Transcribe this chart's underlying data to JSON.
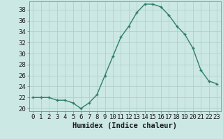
{
  "x": [
    0,
    1,
    2,
    3,
    4,
    5,
    6,
    7,
    8,
    9,
    10,
    11,
    12,
    13,
    14,
    15,
    16,
    17,
    18,
    19,
    20,
    21,
    22,
    23
  ],
  "y": [
    22,
    22,
    22,
    21.5,
    21.5,
    21,
    20,
    21,
    22.5,
    26,
    29.5,
    33,
    35,
    37.5,
    39,
    39,
    38.5,
    37,
    35,
    33.5,
    31,
    27,
    25,
    24.5
  ],
  "line_color": "#2e7d6e",
  "marker": "+",
  "marker_size": 3,
  "marker_lw": 1.0,
  "line_width": 1.0,
  "background_color": "#cce8e4",
  "grid_color": "#b0d0cc",
  "xlabel": "Humidex (Indice chaleur)",
  "xlabel_fontsize": 7.5,
  "tick_fontsize": 6.5,
  "ylim": [
    19.5,
    39.5
  ],
  "xlim": [
    -0.5,
    23.5
  ],
  "yticks": [
    20,
    22,
    24,
    26,
    28,
    30,
    32,
    34,
    36,
    38
  ],
  "xticks": [
    0,
    1,
    2,
    3,
    4,
    5,
    6,
    7,
    8,
    9,
    10,
    11,
    12,
    13,
    14,
    15,
    16,
    17,
    18,
    19,
    20,
    21,
    22,
    23
  ],
  "spine_color": "#888888"
}
